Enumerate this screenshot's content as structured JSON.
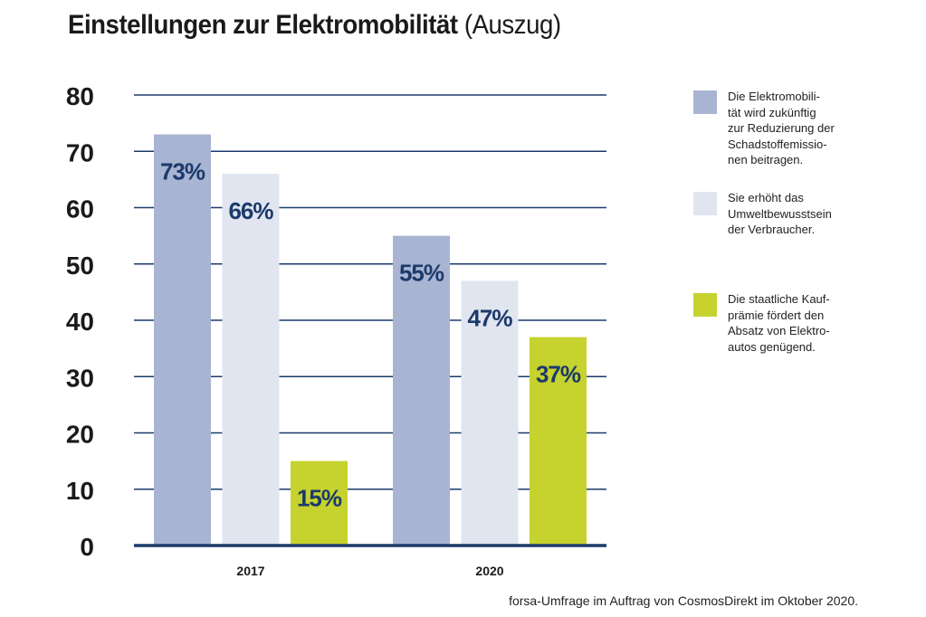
{
  "title": {
    "main": "Einstellungen zur Elektromobilität",
    "sub": "(Auszug)"
  },
  "source": "forsa-Umfrage im Auftrag von CosmosDirekt im Oktober 2020.",
  "colors": {
    "series1": "#a8b4d2",
    "series2": "#e0e5f0",
    "series3": "#c6d22e",
    "axis": "#1b3a6b",
    "label": "#1b3a6b"
  },
  "chart_data": {
    "type": "bar",
    "title": "Einstellungen zur Elektromobilität (Auszug)",
    "categories": [
      "2017",
      "2020"
    ],
    "ylim": [
      0,
      80
    ],
    "yticks": [
      "0",
      "10",
      "20",
      "30",
      "40",
      "50",
      "60",
      "70",
      "80"
    ],
    "grid": true,
    "legend_position": "right",
    "series": [
      {
        "name": "Die Elektromobili-\ntät wird zukünftig\nzur Reduzierung der\nSchadstoffemissio-\nnen beitragen.",
        "values": [
          73,
          55
        ],
        "labels": [
          "73%",
          "55%"
        ],
        "color": "#a8b4d2"
      },
      {
        "name": "Sie erhöht das\nUmweltbewusstsein\nder Verbraucher.",
        "values": [
          66,
          47
        ],
        "labels": [
          "66%",
          "47%"
        ],
        "color": "#e0e5f0"
      },
      {
        "name": "Die staatliche Kauf-\nprämie fördert den\nAbsatz von Elektro-\nautos genügend.",
        "values": [
          15,
          37
        ],
        "labels": [
          "15%",
          "37%"
        ],
        "color": "#c6d22e"
      }
    ]
  }
}
